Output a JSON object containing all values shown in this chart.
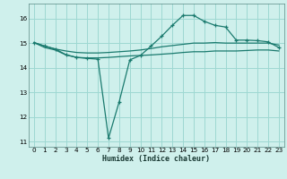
{
  "xlabel": "Humidex (Indice chaleur)",
  "ylabel": "",
  "bg_color": "#cff0ec",
  "grid_color": "#9ed8d2",
  "line_color": "#1a7a6e",
  "xlim": [
    -0.5,
    23.5
  ],
  "ylim": [
    10.8,
    16.6
  ],
  "yticks": [
    11,
    12,
    13,
    14,
    15,
    16
  ],
  "xticks": [
    0,
    1,
    2,
    3,
    4,
    5,
    6,
    7,
    8,
    9,
    10,
    11,
    12,
    13,
    14,
    15,
    16,
    17,
    18,
    19,
    20,
    21,
    22,
    23
  ],
  "series1_x": [
    0,
    1,
    2,
    3,
    4,
    5,
    6,
    7,
    8,
    9,
    10,
    11,
    12,
    13,
    14,
    15,
    16,
    17,
    18,
    19,
    20,
    21,
    22,
    23
  ],
  "series1_y": [
    15.02,
    14.88,
    14.76,
    14.53,
    14.42,
    14.38,
    14.35,
    11.15,
    12.62,
    14.32,
    14.5,
    14.88,
    15.28,
    15.72,
    16.12,
    16.12,
    15.88,
    15.72,
    15.65,
    15.12,
    15.12,
    15.1,
    15.05,
    14.82
  ],
  "series2_x": [
    0,
    1,
    2,
    3,
    4,
    5,
    6,
    7,
    8,
    9,
    10,
    11,
    12,
    13,
    14,
    15,
    16,
    17,
    18,
    19,
    20,
    21,
    22,
    23
  ],
  "series2_y": [
    15.02,
    14.88,
    14.76,
    14.68,
    14.62,
    14.6,
    14.6,
    14.62,
    14.65,
    14.68,
    14.72,
    14.78,
    14.85,
    14.9,
    14.95,
    15.0,
    15.0,
    15.02,
    15.0,
    15.0,
    15.0,
    15.0,
    15.0,
    14.92
  ],
  "series3_x": [
    0,
    1,
    2,
    3,
    4,
    5,
    6,
    7,
    8,
    9,
    10,
    11,
    12,
    13,
    14,
    15,
    16,
    17,
    18,
    19,
    20,
    21,
    22,
    23
  ],
  "series3_y": [
    15.02,
    14.82,
    14.72,
    14.52,
    14.42,
    14.4,
    14.4,
    14.42,
    14.45,
    14.48,
    14.5,
    14.52,
    14.55,
    14.58,
    14.62,
    14.65,
    14.65,
    14.68,
    14.68,
    14.68,
    14.7,
    14.72,
    14.72,
    14.68
  ]
}
